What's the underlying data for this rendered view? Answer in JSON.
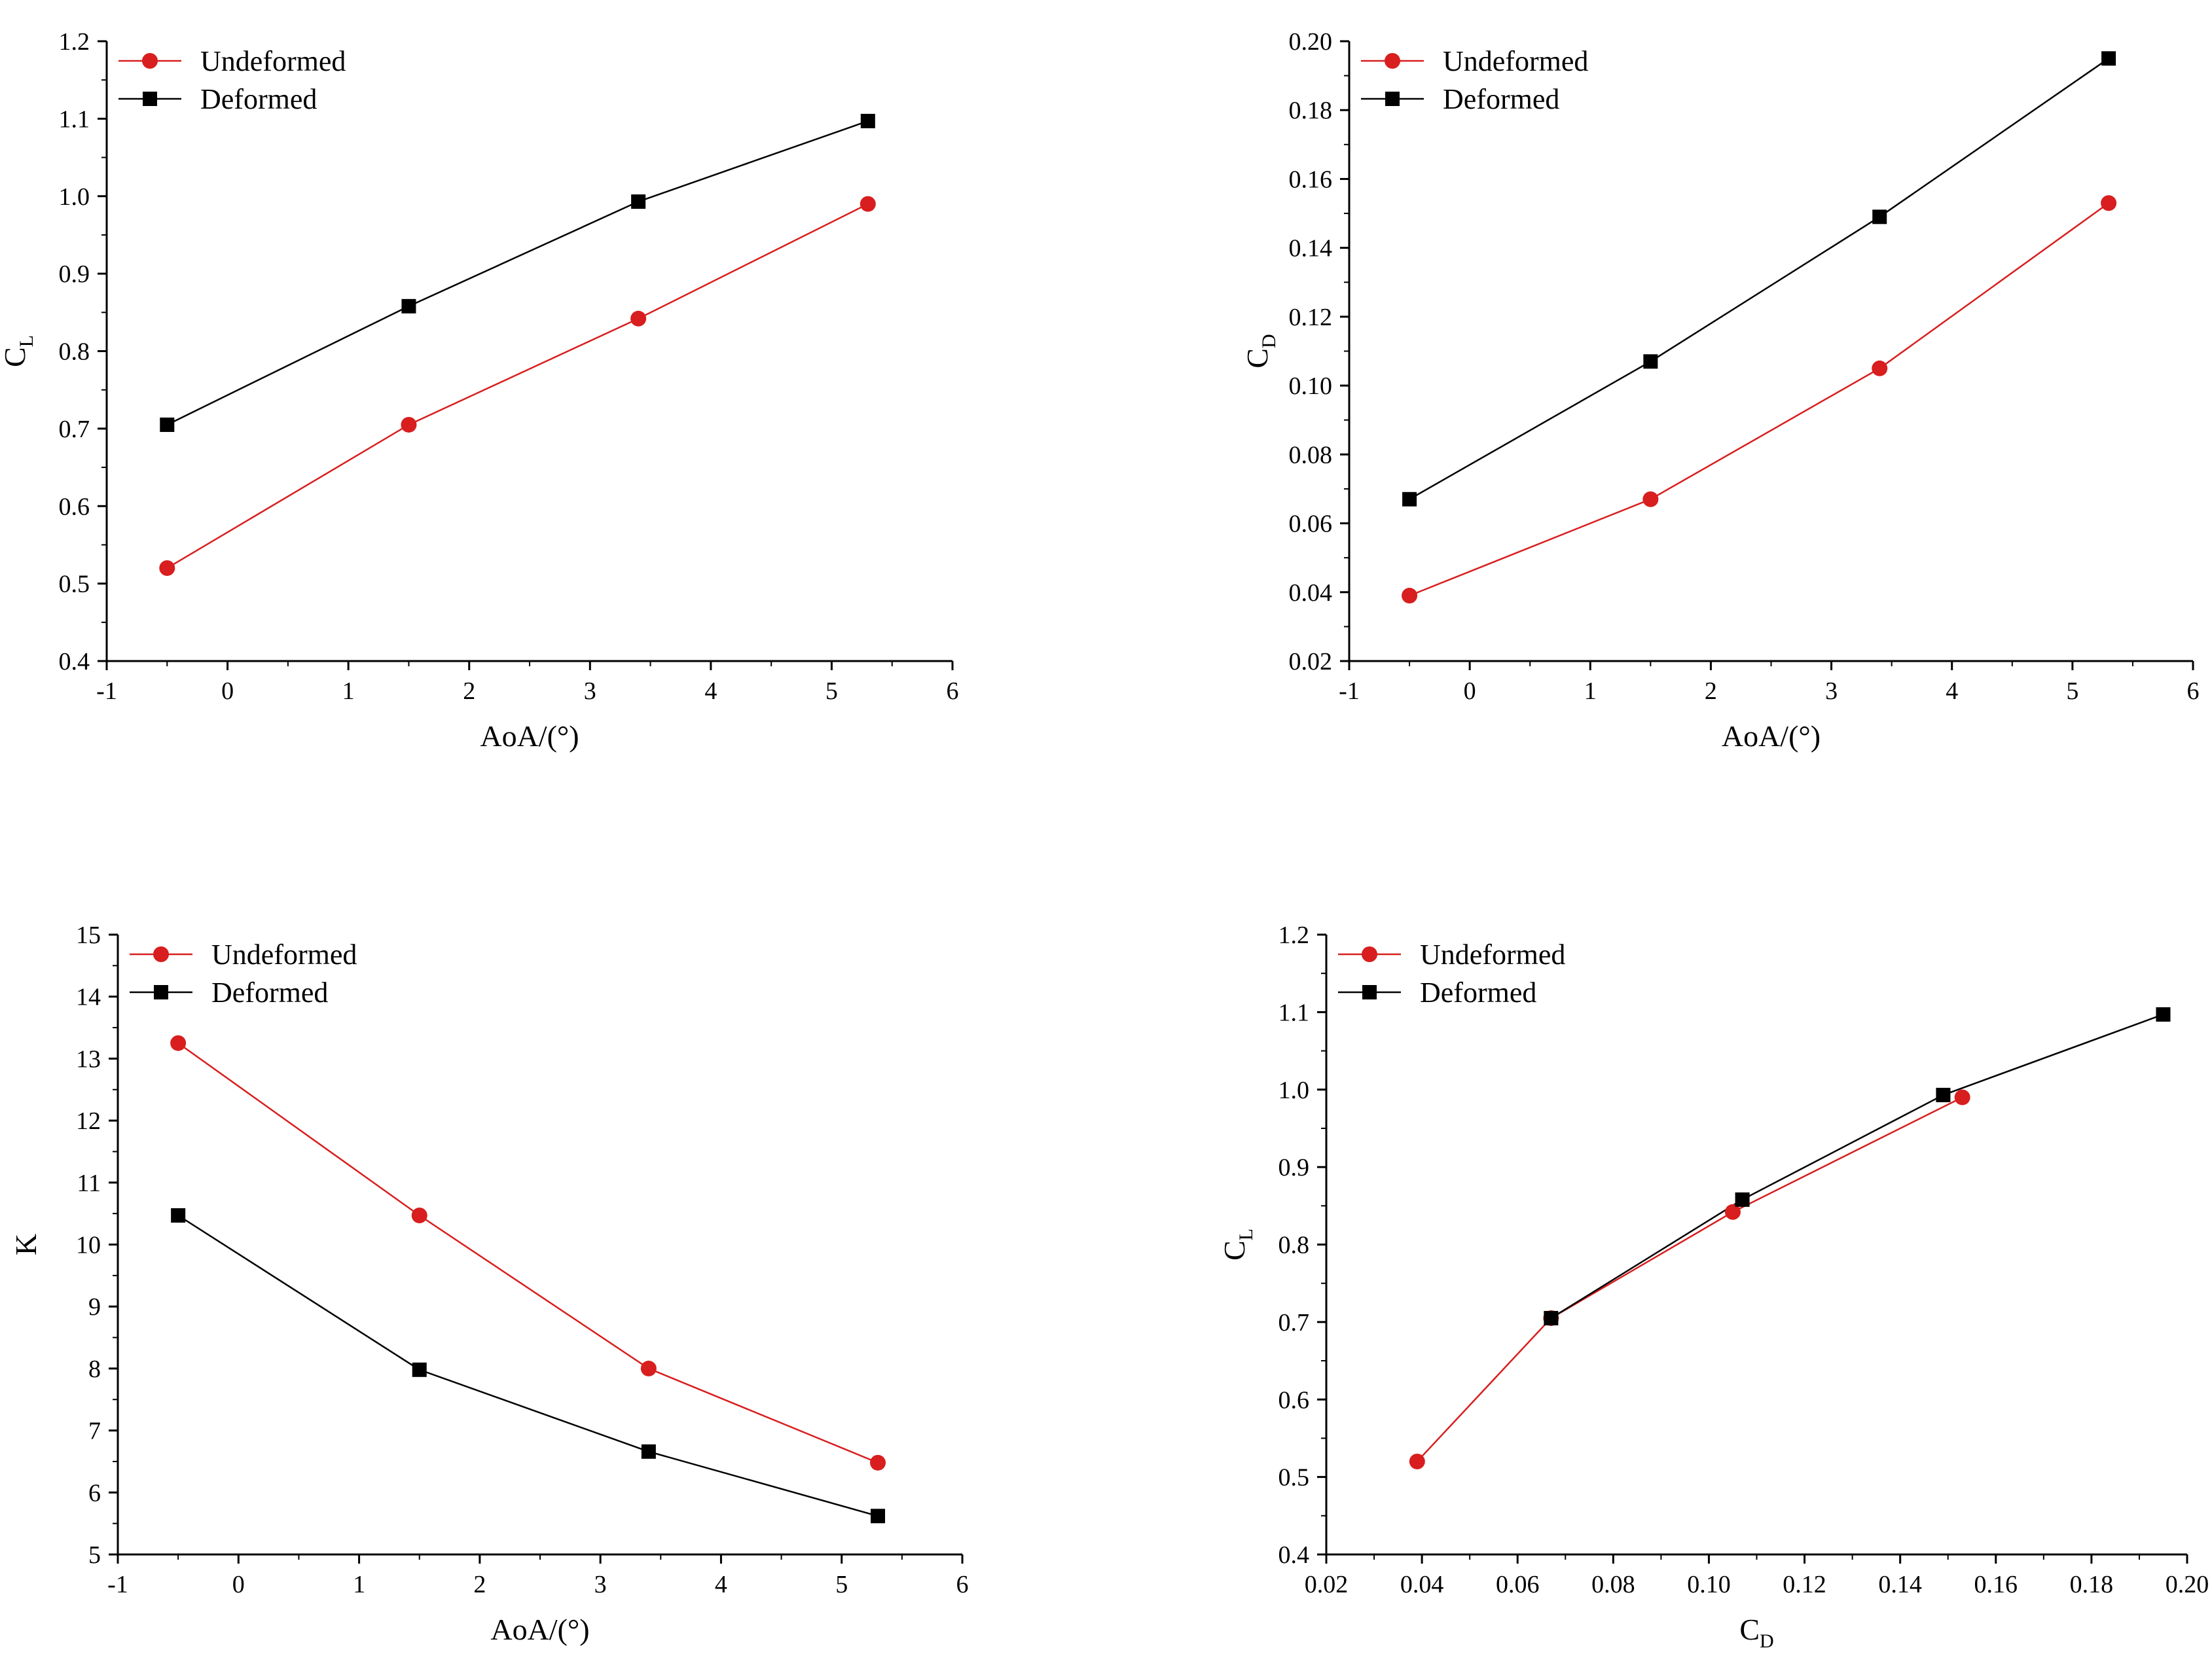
{
  "figure": {
    "colors": {
      "undeformed": "#d81e1e",
      "deformed": "#000000",
      "axis": "#000000"
    }
  },
  "chart_data": [
    {
      "id": "cl_vs_aoa",
      "type": "line",
      "xlabel": "AoA/(°)",
      "ylabel": {
        "main": "C",
        "sub": "L"
      },
      "xlim": [
        -1,
        6
      ],
      "ylim": [
        0.4,
        1.2
      ],
      "xticks": [
        -1,
        0,
        1,
        2,
        3,
        4,
        5,
        6
      ],
      "xtick_labels": [
        "-1",
        "0",
        "1",
        "2",
        "3",
        "4",
        "5",
        "6"
      ],
      "yticks": [
        0.4,
        0.5,
        0.6,
        0.7,
        0.8,
        0.9,
        1.0,
        1.1,
        1.2
      ],
      "ytick_labels": [
        "0.4",
        "0.5",
        "0.6",
        "0.7",
        "0.8",
        "0.9",
        "1.0",
        "1.1",
        "1.2"
      ],
      "legend": "top-left",
      "series": [
        {
          "name": "Undeformed",
          "marker": "circle",
          "color": "#d81e1e",
          "x": [
            -0.5,
            1.5,
            3.4,
            5.3
          ],
          "y": [
            0.52,
            0.705,
            0.842,
            0.99
          ]
        },
        {
          "name": "Deformed",
          "marker": "square",
          "color": "#000000",
          "x": [
            -0.5,
            1.5,
            3.4,
            5.3
          ],
          "y": [
            0.705,
            0.858,
            0.993,
            1.097
          ]
        }
      ]
    },
    {
      "id": "cd_vs_aoa",
      "type": "line",
      "xlabel": "AoA/(°)",
      "ylabel": {
        "main": "C",
        "sub": "D"
      },
      "xlim": [
        -1,
        6
      ],
      "ylim": [
        0.02,
        0.2
      ],
      "xticks": [
        -1,
        0,
        1,
        2,
        3,
        4,
        5,
        6
      ],
      "xtick_labels": [
        "-1",
        "0",
        "1",
        "2",
        "3",
        "4",
        "5",
        "6"
      ],
      "yticks": [
        0.02,
        0.04,
        0.06,
        0.08,
        0.1,
        0.12,
        0.14,
        0.16,
        0.18,
        0.2
      ],
      "ytick_labels": [
        "0.02",
        "0.04",
        "0.06",
        "0.08",
        "0.10",
        "0.12",
        "0.14",
        "0.16",
        "0.18",
        "0.20"
      ],
      "legend": "top-left",
      "series": [
        {
          "name": "Undeformed",
          "marker": "circle",
          "color": "#d81e1e",
          "x": [
            -0.5,
            1.5,
            3.4,
            5.3
          ],
          "y": [
            0.039,
            0.067,
            0.105,
            0.153
          ]
        },
        {
          "name": "Deformed",
          "marker": "square",
          "color": "#000000",
          "x": [
            -0.5,
            1.5,
            3.4,
            5.3
          ],
          "y": [
            0.067,
            0.107,
            0.149,
            0.195
          ]
        }
      ]
    },
    {
      "id": "k_vs_aoa",
      "type": "line",
      "xlabel": "AoA/(°)",
      "ylabel": {
        "main": "K",
        "sub": ""
      },
      "xlim": [
        -1,
        6
      ],
      "ylim": [
        5,
        15
      ],
      "xticks": [
        -1,
        0,
        1,
        2,
        3,
        4,
        5,
        6
      ],
      "xtick_labels": [
        "-1",
        "0",
        "1",
        "2",
        "3",
        "4",
        "5",
        "6"
      ],
      "yticks": [
        5,
        6,
        7,
        8,
        9,
        10,
        11,
        12,
        13,
        14,
        15
      ],
      "ytick_labels": [
        "5",
        "6",
        "7",
        "8",
        "9",
        "10",
        "11",
        "12",
        "13",
        "14",
        "15"
      ],
      "legend": "top-left",
      "series": [
        {
          "name": "Undeformed",
          "marker": "circle",
          "color": "#d81e1e",
          "x": [
            -0.5,
            1.5,
            3.4,
            5.3
          ],
          "y": [
            13.25,
            10.47,
            8.0,
            6.48
          ]
        },
        {
          "name": "Deformed",
          "marker": "square",
          "color": "#000000",
          "x": [
            -0.5,
            1.5,
            3.4,
            5.3
          ],
          "y": [
            10.47,
            7.98,
            6.66,
            5.62
          ]
        }
      ]
    },
    {
      "id": "cl_vs_cd",
      "type": "line",
      "xlabel": {
        "main": "C",
        "sub": "D"
      },
      "ylabel": {
        "main": "C",
        "sub": "L"
      },
      "xlim": [
        0.02,
        0.2
      ],
      "ylim": [
        0.4,
        1.2
      ],
      "xticks": [
        0.02,
        0.04,
        0.06,
        0.08,
        0.1,
        0.12,
        0.14,
        0.16,
        0.18,
        0.2
      ],
      "xtick_labels": [
        "0.02",
        "0.04",
        "0.06",
        "0.08",
        "0.10",
        "0.12",
        "0.14",
        "0.16",
        "0.18",
        "0.20"
      ],
      "yticks": [
        0.4,
        0.5,
        0.6,
        0.7,
        0.8,
        0.9,
        1.0,
        1.1,
        1.2
      ],
      "ytick_labels": [
        "0.4",
        "0.5",
        "0.6",
        "0.7",
        "0.8",
        "0.9",
        "1.0",
        "1.1",
        "1.2"
      ],
      "legend": "top-left",
      "series": [
        {
          "name": "Undeformed",
          "marker": "circle",
          "color": "#d81e1e",
          "x": [
            0.039,
            0.067,
            0.105,
            0.153
          ],
          "y": [
            0.52,
            0.705,
            0.842,
            0.99
          ]
        },
        {
          "name": "Deformed",
          "marker": "square",
          "color": "#000000",
          "x": [
            0.067,
            0.107,
            0.149,
            0.195
          ],
          "y": [
            0.705,
            0.858,
            0.993,
            1.097
          ]
        }
      ]
    }
  ]
}
